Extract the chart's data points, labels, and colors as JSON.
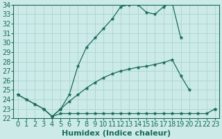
{
  "xlabel": "Humidex (Indice chaleur)",
  "x": [
    0,
    1,
    2,
    3,
    4,
    5,
    6,
    7,
    8,
    9,
    10,
    11,
    12,
    13,
    14,
    15,
    16,
    17,
    18,
    19,
    20,
    21,
    22,
    23
  ],
  "line1": [
    24.5,
    24.0,
    23.5,
    23.0,
    22.2,
    23.0,
    24.5,
    27.5,
    29.5,
    30.5,
    31.5,
    32.5,
    33.8,
    34.0,
    34.0,
    33.2,
    33.0,
    33.8,
    34.2,
    30.5,
    null,
    null,
    null,
    null
  ],
  "line2": [
    24.5,
    24.0,
    23.5,
    23.0,
    22.2,
    23.0,
    23.8,
    24.5,
    25.2,
    25.8,
    26.3,
    26.7,
    27.0,
    27.2,
    27.4,
    27.5,
    27.7,
    27.9,
    28.2,
    26.5,
    25.0,
    null,
    null,
    23.0
  ],
  "line3": [
    24.5,
    null,
    null,
    23.0,
    22.2,
    22.5,
    22.5,
    22.5,
    22.5,
    22.5,
    22.5,
    22.5,
    22.5,
    22.5,
    22.5,
    22.5,
    22.5,
    22.5,
    22.5,
    22.5,
    22.5,
    22.5,
    22.5,
    23.0
  ],
  "ylim": [
    22,
    34
  ],
  "xlim_min": -0.5,
  "xlim_max": 23.5,
  "bg_color": "#cceae7",
  "line_color": "#1a6b5a",
  "grid_color": "#aad6d2",
  "tick_label_fontsize": 7,
  "axis_label_fontsize": 8
}
